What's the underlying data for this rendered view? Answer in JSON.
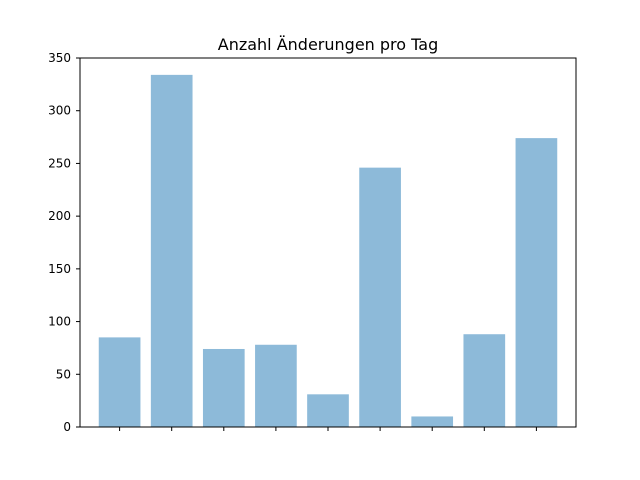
{
  "chart_data": {
    "type": "bar",
    "title": "Anzahl Änderungen pro Tag",
    "xlabel": "",
    "ylabel": "",
    "categories": [
      "",
      "",
      "",
      "",
      "",
      "",
      "",
      "",
      ""
    ],
    "values": [
      85,
      334,
      74,
      78,
      31,
      246,
      10,
      88,
      274
    ],
    "ylim": [
      0,
      350
    ],
    "yticks": [
      0,
      50,
      100,
      150,
      200,
      250,
      300,
      350
    ],
    "bar_color": "#8dbad9",
    "grid": false,
    "legend": "none"
  }
}
